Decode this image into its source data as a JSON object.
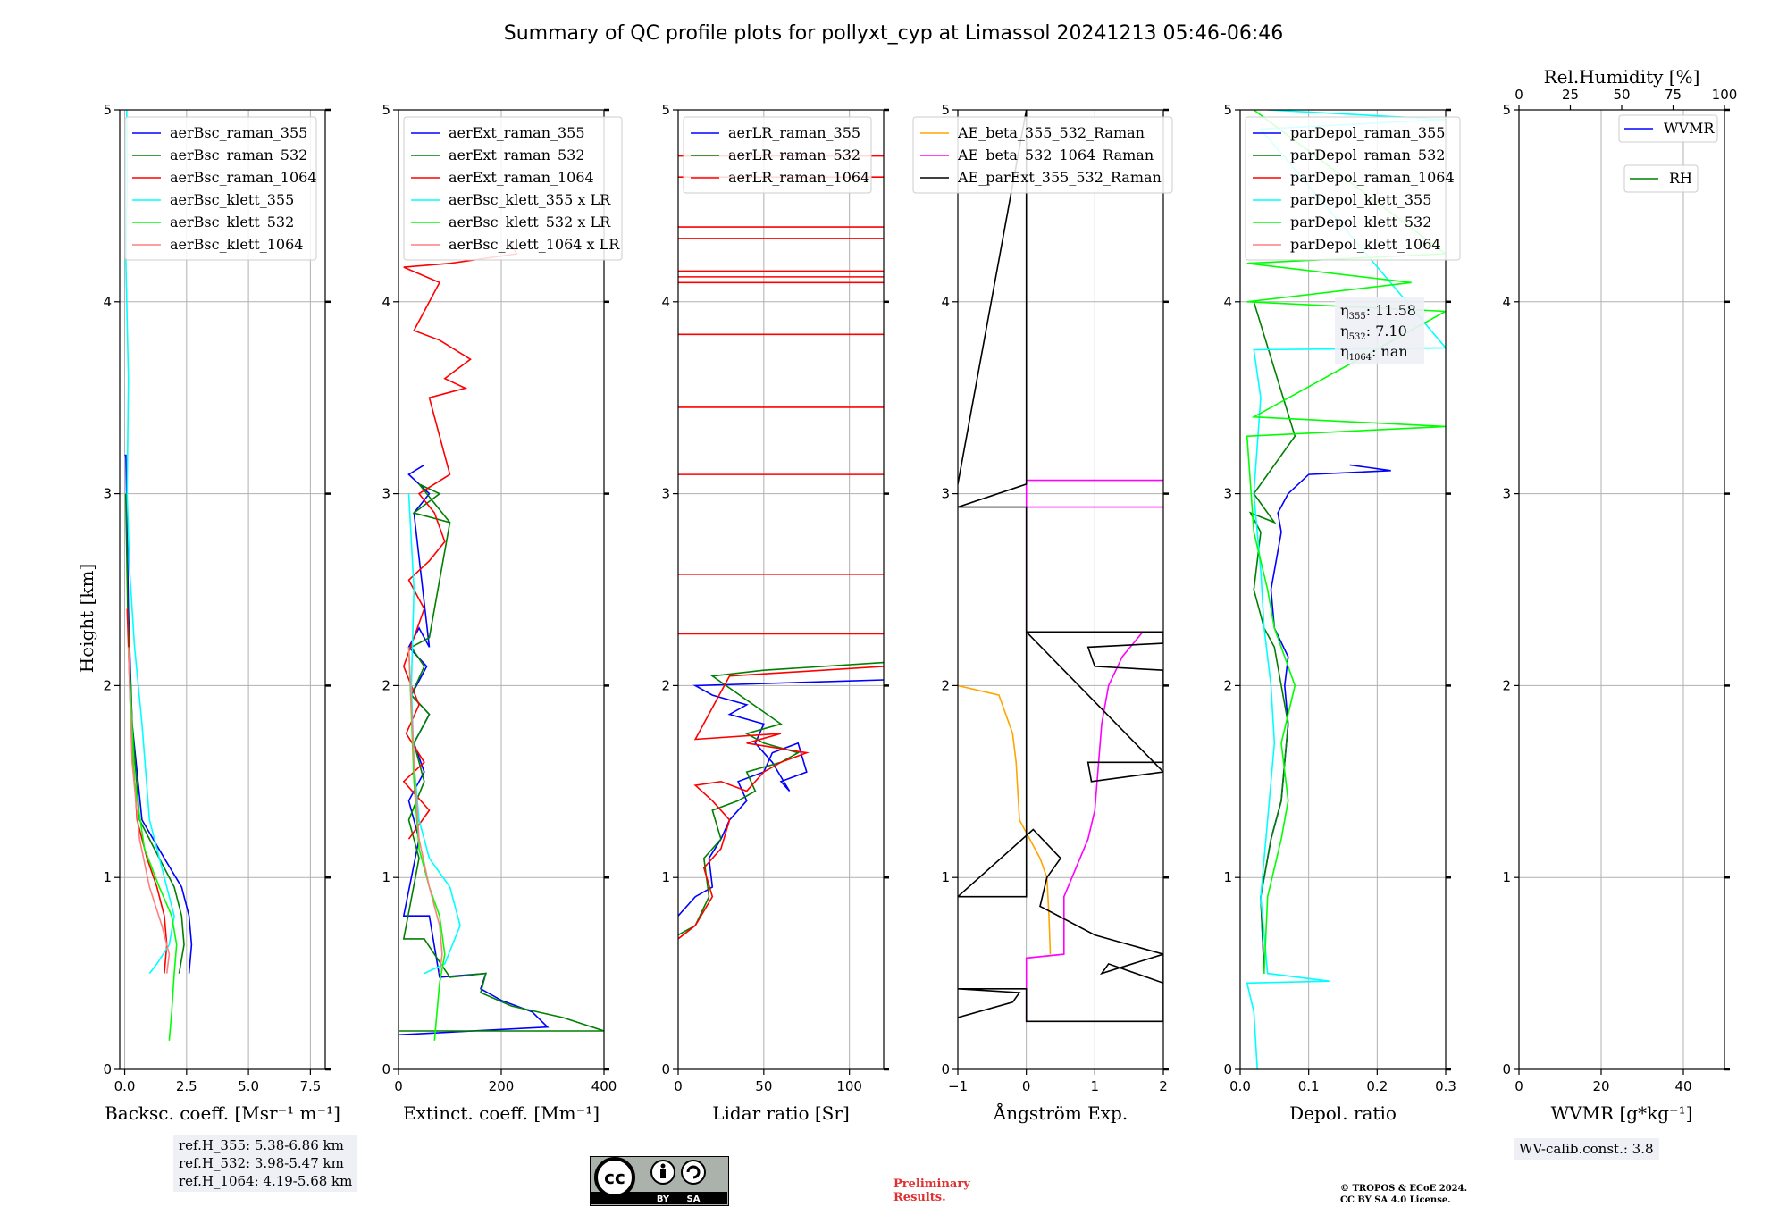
{
  "title": "Summary of QC profile plots for pollyxt_cyp at Limassol 20241213 05:46-06:46",
  "ylabel": "Height [km]",
  "ref_heights": [
    "ref.H_355: 5.38-6.86 km",
    "ref.H_532: 3.98-5.47 km",
    "ref.H_1064: 4.19-5.68 km"
  ],
  "wv_calib": "WV-calib.const.: 3.8",
  "preliminary": [
    "Preliminary",
    "Results."
  ],
  "copyright": [
    "© TROPOS & ECoE 2024.",
    "CC BY SA 4.0 License."
  ],
  "cc_badge": {
    "cc": "cc",
    "by": "BY",
    "sa": "SA"
  },
  "eta": {
    "e355": "11.58",
    "e532": "7.10",
    "e1064": "nan",
    "label_prefix": "η"
  },
  "chart_data": [
    {
      "type": "line",
      "name": "backscatter",
      "xlabel": "Backsc. coeff. [Msr⁻¹ m⁻¹]",
      "xlim": [
        -0.2,
        8.1
      ],
      "ylim": [
        0,
        5
      ],
      "xticks": [
        0,
        2.5,
        5,
        7.5
      ],
      "xticklabels": [
        "0.0",
        "2.5",
        "5.0",
        "7.5"
      ],
      "yticks": [
        0,
        1,
        2,
        3,
        4,
        5
      ],
      "series": [
        {
          "name": "aerBsc_raman_355",
          "color": "#0000ff",
          "x": [
            2.6,
            2.7,
            2.6,
            2.3,
            1.6,
            0.7,
            0.3,
            0.15,
            0.05,
            0.0
          ],
          "y": [
            0.5,
            0.65,
            0.8,
            0.95,
            1.1,
            1.3,
            1.8,
            2.4,
            3.2,
            3.2
          ]
        },
        {
          "name": "aerBsc_raman_532",
          "color": "#008000",
          "x": [
            2.2,
            2.4,
            2.3,
            2.0,
            1.4,
            0.6,
            0.3,
            0.12,
            0.04
          ],
          "y": [
            0.5,
            0.65,
            0.8,
            0.95,
            1.1,
            1.3,
            1.8,
            2.4,
            3.0
          ]
        },
        {
          "name": "aerBsc_raman_1064",
          "color": "#ff0000",
          "x": [
            1.6,
            1.7,
            1.6,
            1.3,
            0.9,
            0.5,
            0.25,
            0.1
          ],
          "y": [
            0.5,
            0.65,
            0.8,
            0.95,
            1.1,
            1.3,
            1.8,
            2.4
          ]
        },
        {
          "name": "aerBsc_klett_355",
          "color": "#00ffff",
          "x": [
            1.0,
            1.3,
            1.8,
            2.0,
            1.6,
            1.0,
            0.7,
            0.4,
            0.2,
            0.1,
            0.15,
            0.05,
            0.1,
            0.08
          ],
          "y": [
            0.5,
            0.55,
            0.65,
            0.8,
            1.0,
            1.3,
            1.8,
            2.2,
            2.6,
            3.0,
            3.6,
            4.2,
            4.6,
            5.0
          ]
        },
        {
          "name": "aerBsc_klett_532",
          "color": "#00ff00",
          "x": [
            1.8,
            1.9,
            2.0,
            2.1,
            1.9,
            1.4,
            0.8,
            0.4,
            0.15
          ],
          "y": [
            0.15,
            0.3,
            0.5,
            0.65,
            0.8,
            0.95,
            1.15,
            1.5,
            2.2
          ]
        },
        {
          "name": "aerBsc_klett_1064",
          "color": "#ff7f7f",
          "x": [
            1.7,
            1.8,
            1.5,
            1.0,
            0.6,
            0.3,
            0.15
          ],
          "y": [
            0.5,
            0.6,
            0.75,
            0.95,
            1.2,
            1.6,
            2.2
          ]
        }
      ]
    },
    {
      "type": "line",
      "name": "extinction",
      "xlabel": "Extinct. coeff. [Mm⁻¹]",
      "xlim": [
        0,
        400
      ],
      "ylim": [
        0,
        5
      ],
      "xticks": [
        0,
        200,
        400
      ],
      "xticklabels": [
        "0",
        "200",
        "400"
      ],
      "yticks": [
        0,
        1,
        2,
        3,
        4,
        5
      ],
      "series": [
        {
          "name": "aerExt_raman_355",
          "color": "#0000ff",
          "x": [
            0,
            290,
            260,
            200,
            160,
            170,
            80,
            60,
            10,
            40,
            20,
            50,
            30,
            60,
            25,
            55,
            20,
            40,
            60,
            30,
            60,
            20,
            50
          ],
          "y": [
            0.18,
            0.22,
            0.3,
            0.36,
            0.42,
            0.5,
            0.48,
            0.8,
            0.8,
            1.2,
            1.4,
            1.55,
            1.7,
            1.85,
            1.95,
            2.1,
            2.2,
            2.3,
            2.2,
            2.9,
            3.0,
            3.1,
            3.15
          ]
        },
        {
          "name": "aerExt_raman_532",
          "color": "#008000",
          "x": [
            0,
            400,
            320,
            220,
            160,
            170,
            100,
            50,
            10,
            40,
            20,
            50,
            30,
            60,
            25,
            50,
            25,
            60,
            100,
            30,
            80,
            40,
            100
          ],
          "y": [
            0.2,
            0.2,
            0.27,
            0.33,
            0.4,
            0.5,
            0.48,
            0.68,
            0.68,
            1.1,
            1.3,
            1.5,
            1.7,
            1.85,
            1.95,
            2.1,
            2.2,
            2.25,
            2.85,
            2.9,
            3.0,
            3.05,
            2.85
          ]
        },
        {
          "name": "aerExt_raman_1064",
          "color": "#ff0000",
          "x": [
            20,
            60,
            10,
            50,
            15,
            40,
            10,
            50,
            20,
            60,
            90,
            70,
            40,
            100,
            60,
            130,
            90,
            140,
            80,
            30,
            80,
            10,
            100,
            230,
            220
          ],
          "y": [
            1.2,
            1.35,
            1.5,
            1.6,
            1.75,
            1.9,
            2.1,
            2.4,
            2.55,
            2.65,
            2.75,
            2.9,
            3.0,
            3.1,
            3.5,
            3.55,
            3.6,
            3.7,
            3.8,
            3.85,
            4.1,
            4.18,
            4.2,
            4.25,
            4.3
          ]
        },
        {
          "name": "aerBsc_klett_355 x LR",
          "color": "#00ffff",
          "x": [
            50,
            90,
            120,
            100,
            60,
            40,
            30,
            25,
            30,
            20
          ],
          "y": [
            0.5,
            0.55,
            0.75,
            0.95,
            1.1,
            1.3,
            1.6,
            2.0,
            2.5,
            3.0
          ]
        },
        {
          "name": "aerBsc_klett_532 x LR",
          "color": "#00ff00",
          "x": [
            70,
            75,
            80,
            90,
            80,
            60,
            40,
            30,
            20
          ],
          "y": [
            0.15,
            0.3,
            0.45,
            0.6,
            0.8,
            0.95,
            1.15,
            1.5,
            2.2
          ]
        },
        {
          "name": "aerBsc_klett_1064 x LR",
          "color": "#ff7f7f",
          "x": [
            80,
            85,
            80,
            60,
            40,
            30,
            20
          ],
          "y": [
            0.5,
            0.6,
            0.75,
            0.95,
            1.2,
            1.6,
            2.2
          ]
        }
      ]
    },
    {
      "type": "line",
      "name": "lidar_ratio",
      "xlabel": "Lidar ratio [Sr]",
      "xlim": [
        0,
        120
      ],
      "ylim": [
        0,
        5
      ],
      "xticks": [
        0,
        50,
        100
      ],
      "xticklabels": [
        "0",
        "50",
        "100"
      ],
      "yticks": [
        0,
        1,
        2,
        3,
        4,
        5
      ],
      "series": [
        {
          "name": "aerLR_raman_355",
          "color": "#0000ff",
          "x": [
            0,
            10,
            20,
            18,
            25,
            30,
            40,
            35,
            50,
            55,
            70,
            75,
            60,
            65,
            55,
            45,
            50,
            30,
            40,
            20,
            10,
            120
          ],
          "y": [
            0.8,
            0.9,
            0.95,
            1.1,
            1.2,
            1.3,
            1.4,
            1.5,
            1.55,
            1.65,
            1.7,
            1.55,
            1.5,
            1.45,
            1.6,
            1.7,
            1.8,
            1.85,
            1.9,
            1.95,
            2.0,
            2.03
          ]
        },
        {
          "name": "aerLR_raman_532",
          "color": "#008000",
          "x": [
            0,
            10,
            18,
            15,
            25,
            20,
            35,
            45,
            40,
            60,
            70,
            50,
            40,
            60,
            20,
            50,
            120
          ],
          "y": [
            0.7,
            0.75,
            0.9,
            1.1,
            1.2,
            1.35,
            1.4,
            1.45,
            1.55,
            1.6,
            1.65,
            1.7,
            1.75,
            1.8,
            2.05,
            2.08,
            2.12
          ]
        },
        {
          "name": "aerLR_raman_1064",
          "color": "#ff0000",
          "x": [
            0,
            10,
            20,
            15,
            25,
            30,
            20,
            10,
            25,
            40,
            50,
            60,
            75,
            40,
            60,
            10,
            30,
            120
          ],
          "y": [
            0.68,
            0.75,
            0.9,
            1.05,
            1.15,
            1.3,
            1.4,
            1.48,
            1.5,
            1.45,
            1.55,
            1.6,
            1.65,
            1.7,
            1.75,
            1.72,
            2.05,
            2.1
          ]
        }
      ],
      "hlines": {
        "color": "#ff0000",
        "y": [
          2.27,
          2.58,
          3.1,
          3.45,
          3.83,
          4.1,
          4.13,
          4.16,
          4.33,
          4.39,
          4.65,
          4.76
        ]
      }
    },
    {
      "type": "line",
      "name": "angstrom",
      "xlabel": "Ångström Exp.",
      "xlim": [
        -1,
        2
      ],
      "ylim": [
        0,
        5
      ],
      "xticks": [
        -1,
        0,
        1,
        2
      ],
      "xticklabels": [
        "−1",
        "0",
        "1",
        "2"
      ],
      "yticks": [
        0,
        1,
        2,
        3,
        4,
        5
      ],
      "series": [
        {
          "name": "AE_beta_355_532_Raman",
          "color": "#ffa500",
          "x": [
            0.35,
            0.33,
            0.3,
            0.2,
            0.05,
            -0.1,
            -0.15,
            -0.2,
            -0.4,
            -1.0
          ],
          "y": [
            0.6,
            0.8,
            1.0,
            1.1,
            1.2,
            1.3,
            1.6,
            1.75,
            1.95,
            2.0
          ]
        },
        {
          "name": "AE_beta_532_1064_Raman",
          "color": "#ff00ff",
          "x": [
            0,
            0,
            0.55,
            0.55,
            0.9,
            1.0,
            1.1,
            1.2,
            1.4,
            1.7,
            0,
            0,
            2.0,
            0,
            0,
            2.0
          ],
          "y": [
            0.25,
            0.58,
            0.6,
            0.9,
            1.2,
            1.35,
            1.8,
            2.0,
            2.15,
            2.28,
            2.28,
            2.93,
            2.93,
            2.93,
            3.07,
            3.07
          ]
        },
        {
          "name": "AE_parExt_355_532_Raman",
          "color": "#000000",
          "x": [
            -1.0,
            -0.2,
            -0.1,
            -1.0,
            0,
            0,
            2.0,
            2.0,
            1.1,
            1.2,
            2.0,
            2.0,
            1.0,
            0.2,
            0.3,
            0.5,
            0.1,
            -1.0,
            0,
            0,
            2.0,
            2.0,
            0.9,
            1.0,
            2.0,
            2.0,
            0.9,
            0.95,
            2.0,
            0,
            0,
            -1.0,
            0,
            0,
            -1.0
          ],
          "y": [
            0.27,
            0.35,
            0.4,
            0.42,
            0.42,
            0.25,
            0.25,
            0.6,
            0.5,
            0.55,
            0.45,
            0.6,
            0.7,
            0.85,
            1.0,
            1.1,
            1.25,
            0.9,
            0.9,
            2.28,
            2.28,
            2.22,
            2.2,
            2.1,
            2.08,
            1.6,
            1.6,
            1.5,
            1.55,
            2.28,
            2.93,
            2.93,
            3.05,
            5.0,
            3.05
          ]
        }
      ]
    },
    {
      "type": "line",
      "name": "depolarization",
      "xlabel": "Depol. ratio",
      "xlim": [
        0,
        0.3
      ],
      "ylim": [
        0,
        5
      ],
      "xticks": [
        0,
        0.1,
        0.2,
        0.3
      ],
      "xticklabels": [
        "0.0",
        "0.1",
        "0.2",
        "0.3"
      ],
      "yticks": [
        0,
        1,
        2,
        3,
        4,
        5
      ],
      "series": [
        {
          "name": "parDepol_raman_355",
          "color": "#0000ff",
          "x": [
            0.035,
            0.03,
            0.045,
            0.06,
            0.065,
            0.07,
            0.065,
            0.07,
            0.05,
            0.045,
            0.06,
            0.055,
            0.07,
            0.1,
            0.22,
            0.16
          ],
          "y": [
            0.5,
            0.9,
            1.2,
            1.4,
            1.6,
            1.8,
            2.0,
            2.15,
            2.3,
            2.5,
            2.8,
            2.9,
            3.0,
            3.1,
            3.12,
            3.15
          ]
        },
        {
          "name": "parDepol_raman_532",
          "color": "#008000",
          "x": [
            0.035,
            0.03,
            0.045,
            0.06,
            0.065,
            0.07,
            0.06,
            0.05,
            0.035,
            0.02,
            0.03,
            0.015,
            0.05,
            0.02,
            0.08,
            0.02
          ],
          "y": [
            0.5,
            0.9,
            1.2,
            1.4,
            1.6,
            1.8,
            2.0,
            2.2,
            2.3,
            2.5,
            2.8,
            2.9,
            2.85,
            3.0,
            3.3,
            4.0
          ]
        },
        {
          "name": "parDepol_raman_1064",
          "color": "#ff0000",
          "x": [],
          "y": []
        },
        {
          "name": "parDepol_klett_355",
          "color": "#00ffff",
          "x": [
            0.025,
            0.02,
            0.01,
            0.13,
            0.04,
            0.03,
            0.04,
            0.05,
            0.045,
            0.035,
            0.03,
            0.02,
            0.03,
            0.02,
            0.3,
            0.03,
            0.3,
            0.04
          ],
          "y": [
            0.0,
            0.3,
            0.45,
            0.46,
            0.5,
            0.9,
            1.3,
            1.7,
            2.0,
            2.3,
            2.6,
            3.0,
            3.5,
            3.75,
            3.76,
            4.9,
            4.95,
            5.0
          ]
        },
        {
          "name": "parDepol_klett_532",
          "color": "#00ff00",
          "x": [
            0.035,
            0.04,
            0.06,
            0.07,
            0.06,
            0.08,
            0.05,
            0.04,
            0.02,
            0.01,
            0.3,
            0.02,
            0.3,
            0.01,
            0.25,
            0.01,
            0.3,
            0.02
          ],
          "y": [
            0.5,
            0.9,
            1.2,
            1.4,
            1.7,
            2.0,
            2.3,
            2.5,
            2.8,
            3.3,
            3.35,
            3.4,
            3.95,
            4.0,
            4.1,
            4.2,
            4.25,
            5.0
          ]
        },
        {
          "name": "parDepol_klett_1064",
          "color": "#ff7f7f",
          "x": [],
          "y": []
        }
      ]
    },
    {
      "type": "line",
      "name": "water_vapor",
      "xlabel": "WVMR [g*kg⁻¹]",
      "xlim": [
        0,
        50
      ],
      "ylim": [
        0,
        5
      ],
      "xticks": [
        0,
        20,
        40
      ],
      "xticklabels": [
        "0",
        "20",
        "40"
      ],
      "yticks": [
        0,
        1,
        2,
        3,
        4,
        5
      ],
      "top_xlabel": "Rel.Humidity [%]",
      "top_xticks": [
        0,
        25,
        50,
        75,
        100
      ],
      "top_xlim": [
        0,
        100
      ],
      "series": [
        {
          "name": "WVMR",
          "color": "#0000ff",
          "x": [],
          "y": []
        },
        {
          "name": "RH",
          "color": "#008000",
          "x": [],
          "y": []
        }
      ]
    }
  ]
}
